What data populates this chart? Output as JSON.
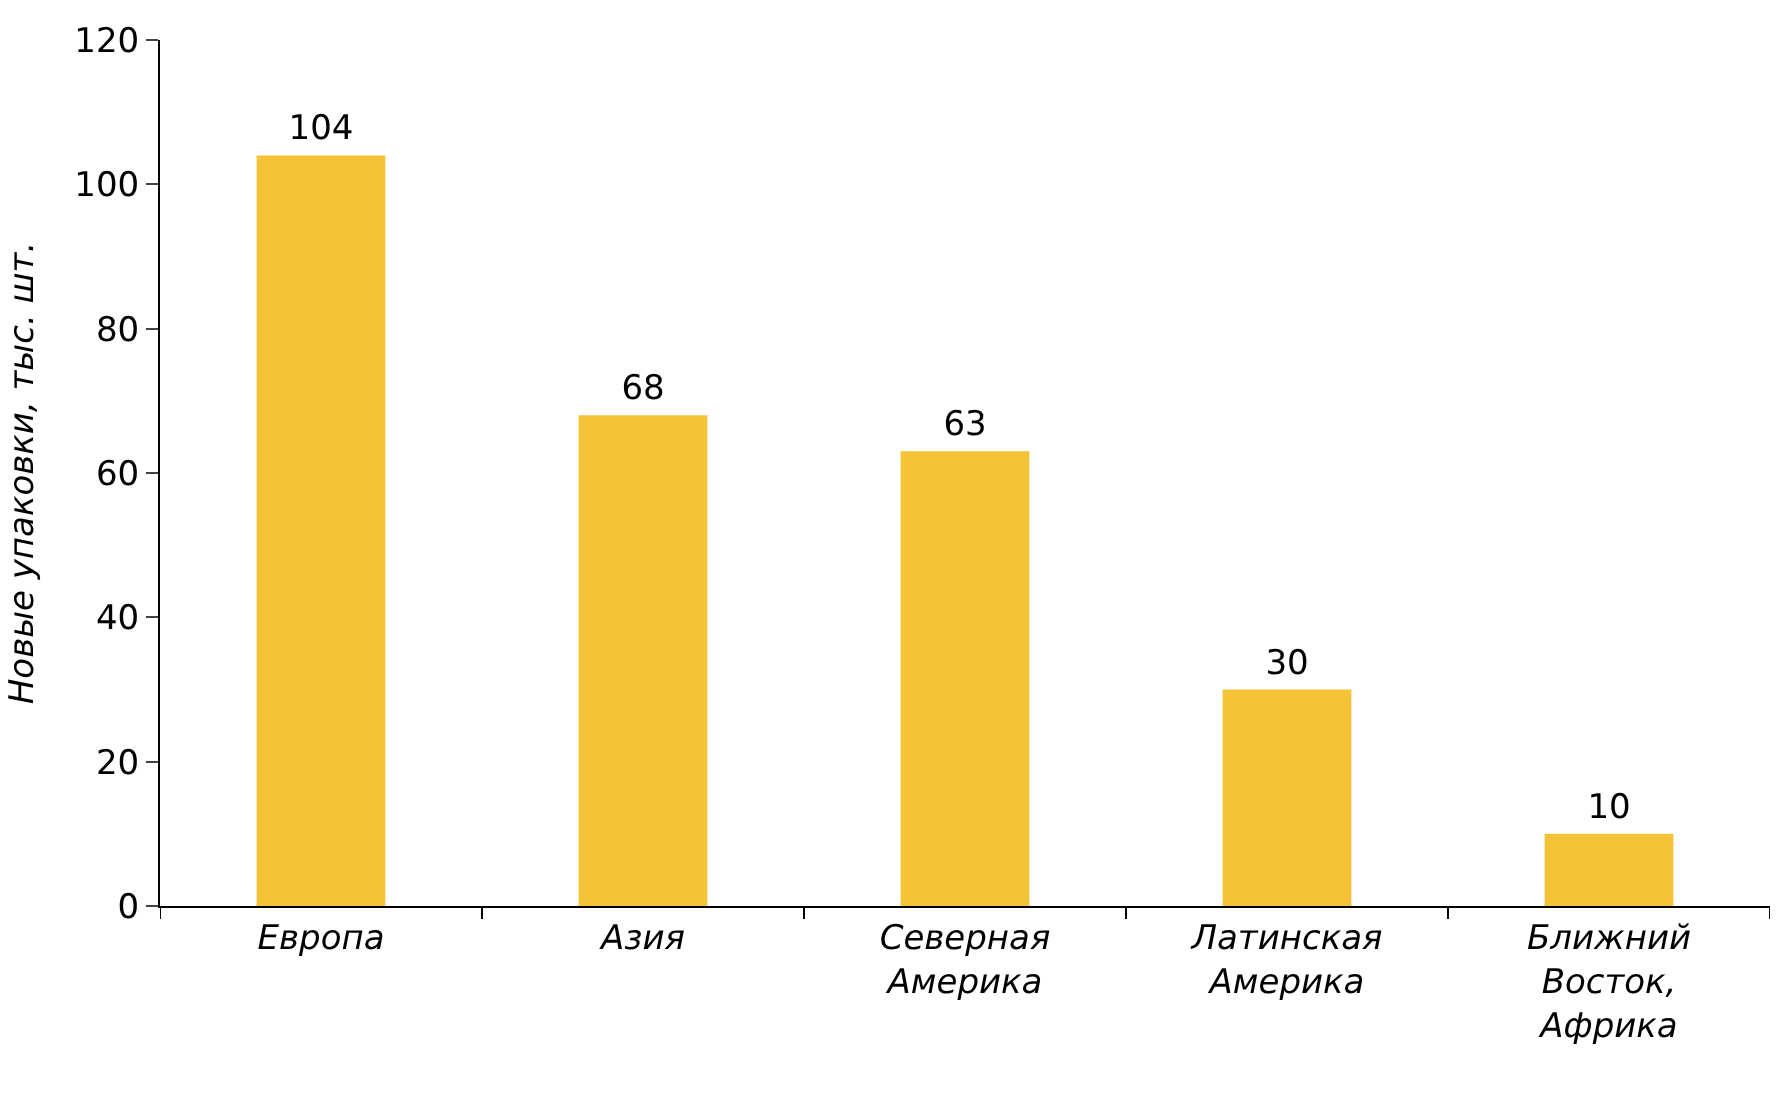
{
  "chart_data": {
    "type": "bar",
    "ylabel": "Новые упаковки, тыс. шт.",
    "categories": [
      "Европа",
      "Азия",
      "Северная Америка",
      "Латинская Америка",
      "Ближний Восток, Африка"
    ],
    "values": [
      104,
      68,
      63,
      30,
      10
    ],
    "color": "#f5c338",
    "ylim": [
      0,
      120
    ],
    "yticks": [
      0,
      20,
      40,
      60,
      80,
      100,
      120
    ],
    "data_labels": true
  }
}
